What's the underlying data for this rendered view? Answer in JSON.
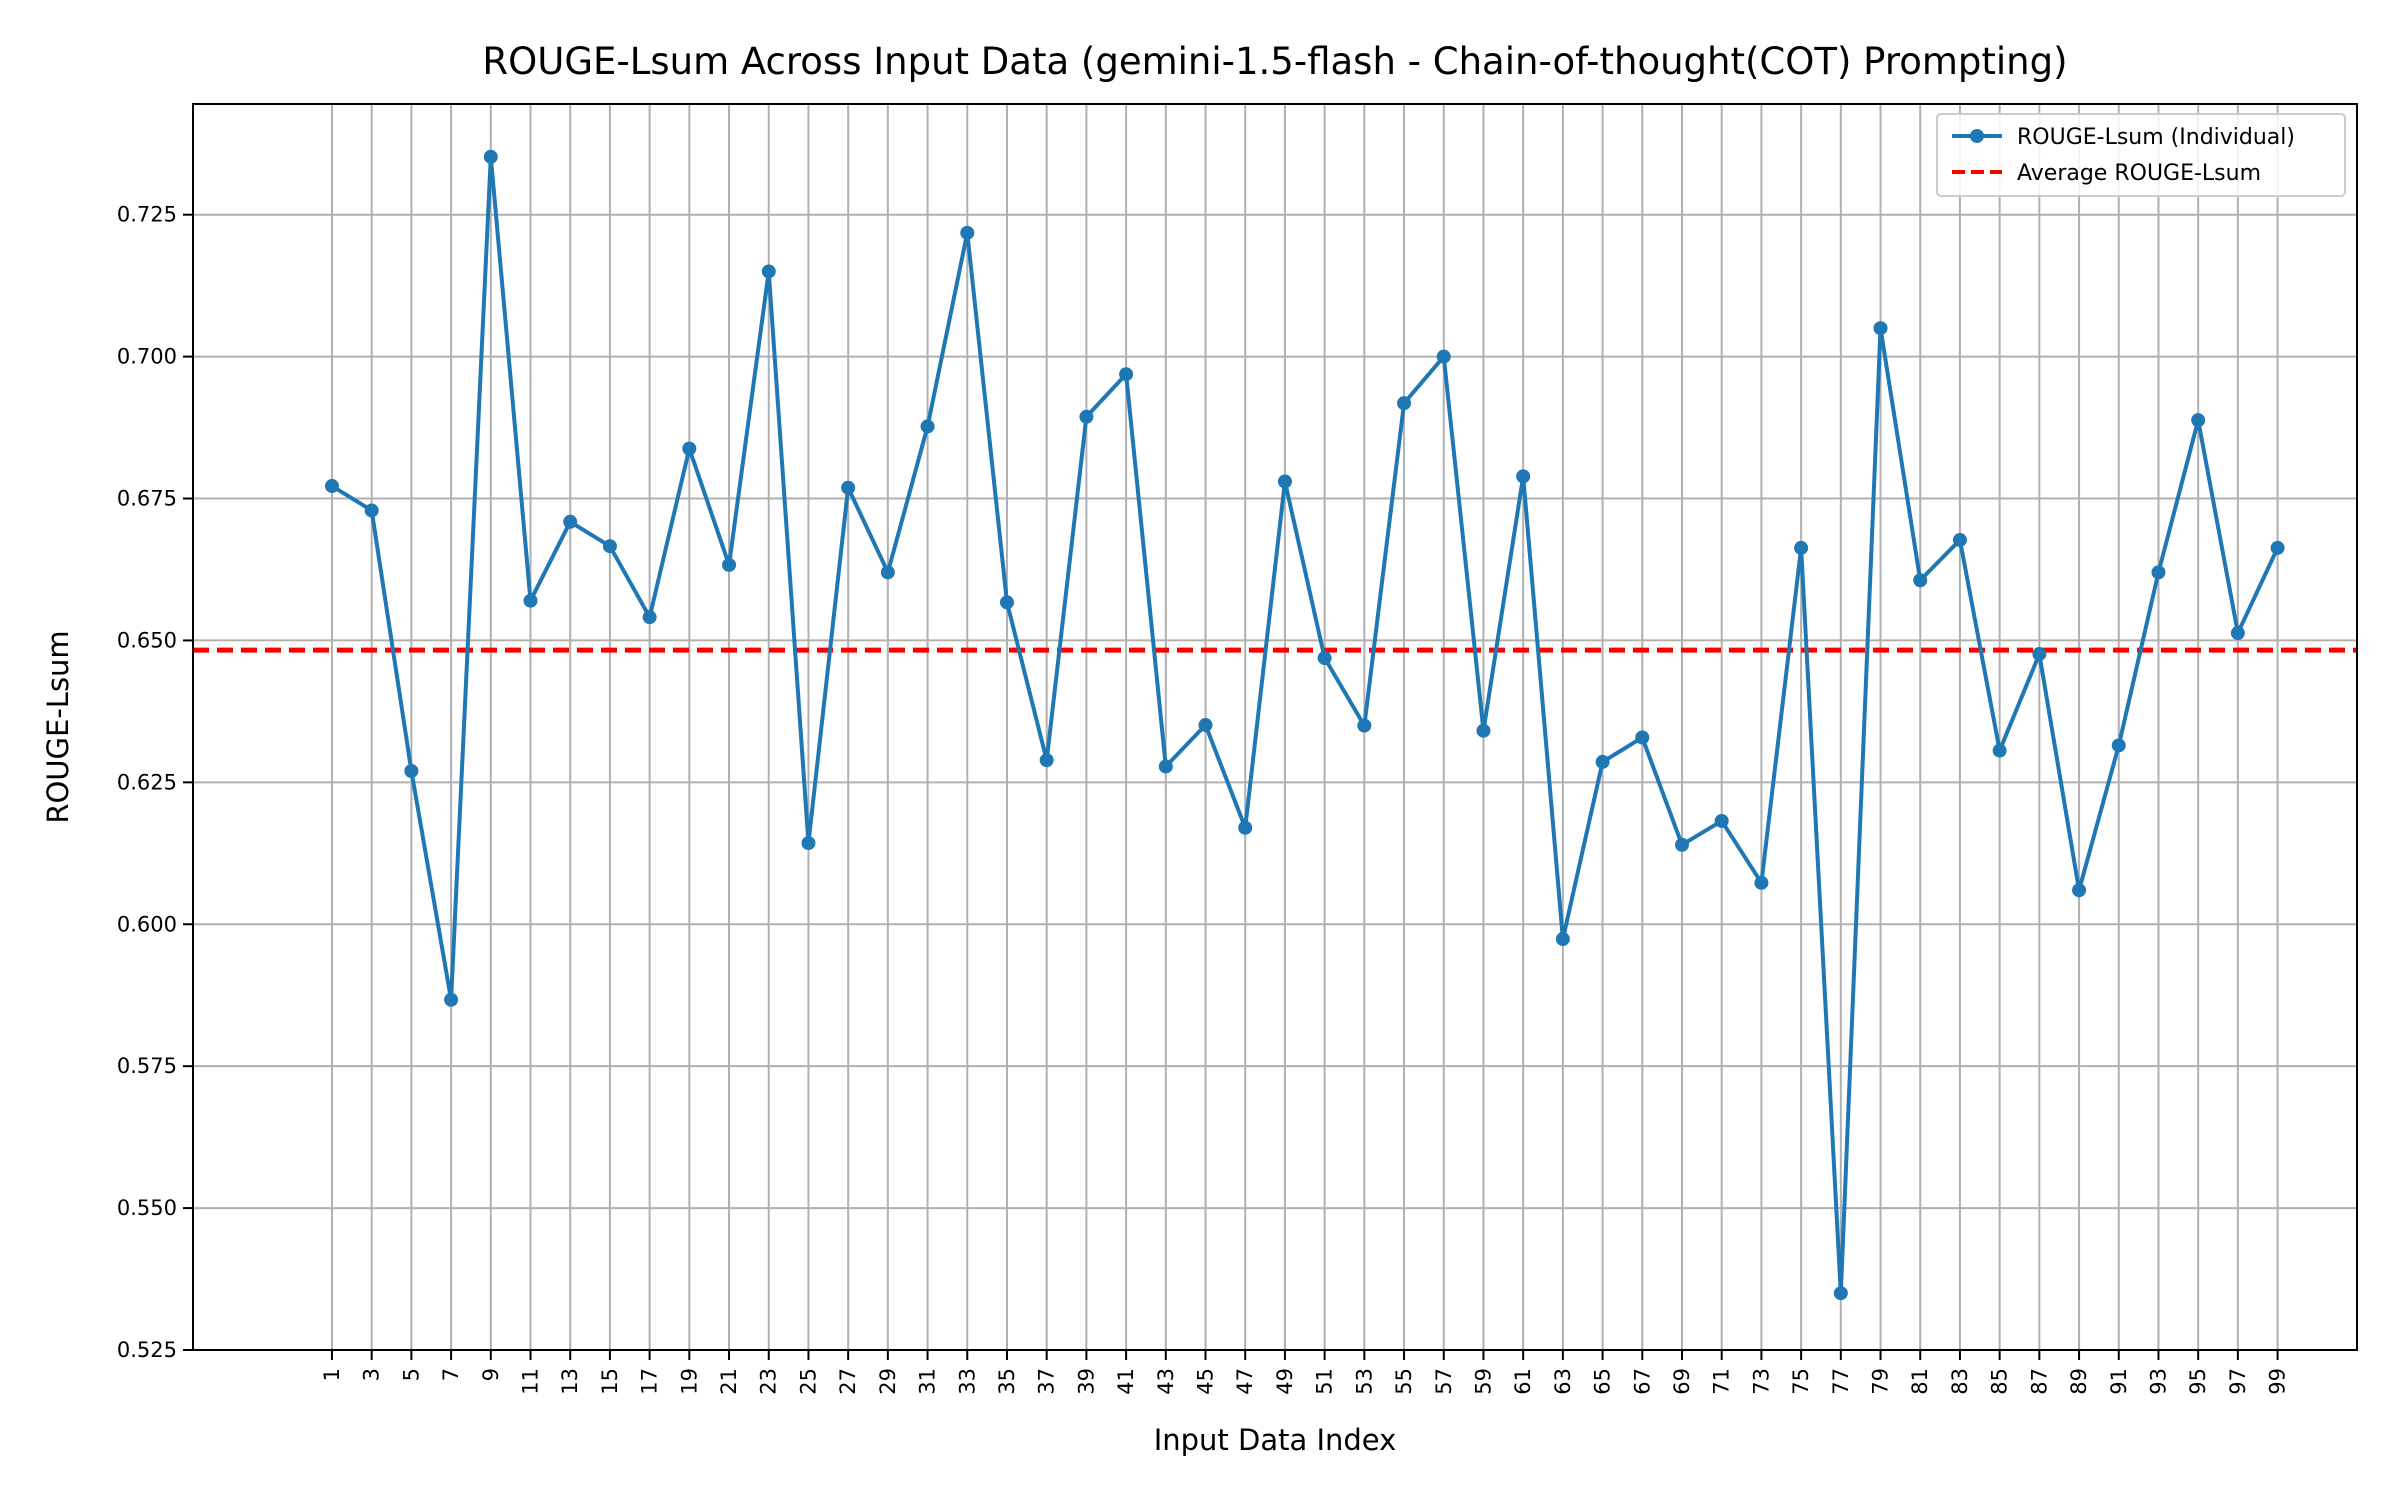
{
  "chart_data": {
    "type": "line",
    "title": "ROUGE-Lsum Across Input Data (gemini-1.5-flash - Chain-of-thought(COT) Prompting)",
    "xlabel": "Input Data Index",
    "ylabel": "ROUGE-Lsum",
    "xlim": [
      -6,
      103
    ],
    "ylim": [
      0.525,
      0.7445
    ],
    "x_ticks": [
      1,
      3,
      5,
      7,
      9,
      11,
      13,
      15,
      17,
      19,
      21,
      23,
      25,
      27,
      29,
      31,
      33,
      35,
      37,
      39,
      41,
      43,
      45,
      47,
      49,
      51,
      53,
      55,
      57,
      59,
      61,
      63,
      65,
      67,
      69,
      71,
      73,
      75,
      77,
      79,
      81,
      83,
      85,
      87,
      89,
      91,
      93,
      95,
      97,
      99
    ],
    "y_ticks": [
      0.525,
      0.55,
      0.575,
      0.6,
      0.625,
      0.65,
      0.675,
      0.7,
      0.725
    ],
    "y_tick_labels": [
      "0.525",
      "0.550",
      "0.575",
      "0.600",
      "0.625",
      "0.650",
      "0.675",
      "0.700",
      "0.725"
    ],
    "grid": true,
    "legend_position": "top-right",
    "series": [
      {
        "name": "ROUGE-Lsum (Individual)",
        "style": "line-marker",
        "color": "#1f77b4",
        "x": [
          1,
          3,
          5,
          7,
          9,
          11,
          13,
          15,
          17,
          19,
          21,
          23,
          25,
          27,
          29,
          31,
          33,
          35,
          37,
          39,
          41,
          43,
          45,
          47,
          49,
          51,
          53,
          55,
          57,
          59,
          61,
          63,
          65,
          67,
          69,
          71,
          73,
          75,
          77,
          79,
          81,
          83,
          85,
          87,
          89,
          91,
          93,
          95,
          97,
          99
        ],
        "values": [
          0.6772,
          0.6729,
          0.627,
          0.5867,
          0.7352,
          0.657,
          0.6709,
          0.6666,
          0.6541,
          0.6838,
          0.6633,
          0.715,
          0.6143,
          0.6769,
          0.662,
          0.6877,
          0.7218,
          0.6567,
          0.6289,
          0.6894,
          0.6969,
          0.6278,
          0.6351,
          0.617,
          0.678,
          0.6469,
          0.635,
          0.6918,
          0.7,
          0.6341,
          0.6789,
          0.5974,
          0.6286,
          0.6329,
          0.614,
          0.6182,
          0.6073,
          0.6663,
          0.535,
          0.705,
          0.6606,
          0.6677,
          0.6306,
          0.6476,
          0.606,
          0.6315,
          0.662,
          0.6888,
          0.6513,
          0.6663
        ]
      },
      {
        "name": "Average ROUGE-Lsum",
        "style": "dashed",
        "color": "#ff0000",
        "values": [
          0.6483
        ]
      }
    ]
  }
}
